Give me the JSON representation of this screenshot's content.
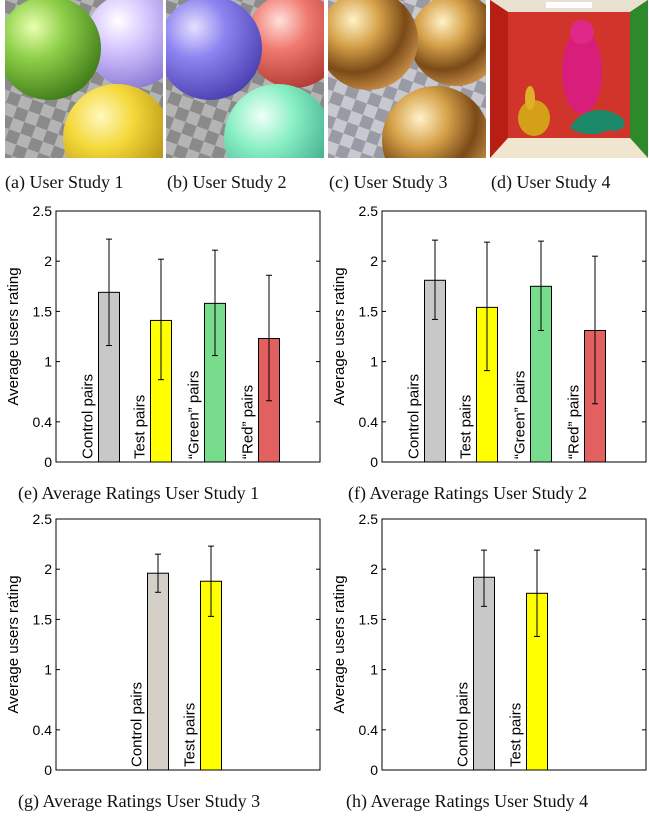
{
  "images": [
    {
      "caption": "(a)  User Study 1",
      "scene": "colored-spheres-green-purple-yellow"
    },
    {
      "caption": "(b)  User Study 2",
      "scene": "colored-spheres-blue-red-cyan"
    },
    {
      "caption": "(c)  User Study 3",
      "scene": "gold-metallic-spheres"
    },
    {
      "caption": "(d)  User Study 4",
      "scene": "cornell-box-buddha-dragon-bunny"
    }
  ],
  "chart_data": [
    {
      "type": "bar",
      "caption": "(e)  Average Ratings User Study 1",
      "ylabel": "Average users rating",
      "ylim": [
        0,
        2.5
      ],
      "yticks": [
        "0",
        "0.4",
        "1",
        "1.5",
        "2",
        "2.5"
      ],
      "categories": [
        "Control pairs",
        "Test pairs",
        "“Green” pairs",
        "“Red” pairs"
      ],
      "values": [
        1.69,
        1.41,
        1.58,
        1.23
      ],
      "err_low": [
        1.16,
        0.82,
        1.06,
        0.61
      ],
      "err_high": [
        2.22,
        2.02,
        2.11,
        1.86
      ],
      "colors": [
        "#c8c8c8",
        "#ffff00",
        "#77dd8c",
        "#e36060"
      ]
    },
    {
      "type": "bar",
      "caption": "(f)  Average Ratings User Study 2",
      "ylabel": "Average users rating",
      "ylim": [
        0,
        2.5
      ],
      "yticks": [
        "0",
        "0.4",
        "1",
        "1.5",
        "2",
        "2.5"
      ],
      "categories": [
        "Control pairs",
        "Test pairs",
        "“Green” pairs",
        "“Red” pairs"
      ],
      "values": [
        1.81,
        1.54,
        1.75,
        1.31
      ],
      "err_low": [
        1.42,
        0.91,
        1.31,
        0.58
      ],
      "err_high": [
        2.21,
        2.19,
        2.2,
        2.05
      ],
      "colors": [
        "#c8c8c8",
        "#ffff00",
        "#77dd8c",
        "#e36060"
      ]
    },
    {
      "type": "bar",
      "caption": "(g)  Average Ratings User Study 3",
      "ylabel": "Average users rating",
      "ylim": [
        0,
        2.5
      ],
      "yticks": [
        "0",
        "0.4",
        "1",
        "1.5",
        "2",
        "2.5"
      ],
      "categories": [
        "Control pairs",
        "Test pairs"
      ],
      "values": [
        1.96,
        1.88
      ],
      "err_low": [
        1.77,
        1.53
      ],
      "err_high": [
        2.15,
        2.23
      ],
      "colors": [
        "#d4d0c8",
        "#ffff00"
      ]
    },
    {
      "type": "bar",
      "caption": "(h)  Average Ratings User Study 4",
      "ylabel": "Average users rating",
      "ylim": [
        0,
        2.5
      ],
      "yticks": [
        "0",
        "0.4",
        "1",
        "1.5",
        "2",
        "2.5"
      ],
      "categories": [
        "Control pairs",
        "Test pairs"
      ],
      "values": [
        1.92,
        1.76
      ],
      "err_low": [
        1.63,
        1.33
      ],
      "err_high": [
        2.19,
        2.19
      ],
      "colors": [
        "#c8c8c8",
        "#ffff00"
      ]
    }
  ]
}
